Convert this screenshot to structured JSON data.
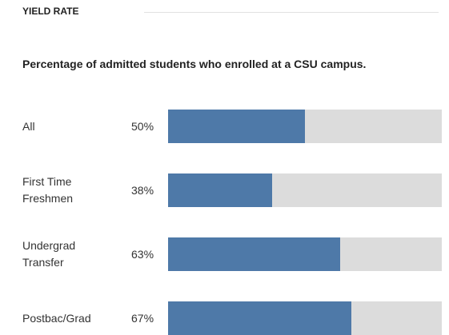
{
  "chart_data": {
    "type": "bar",
    "orientation": "horizontal",
    "title": "YIELD RATE",
    "subtitle": "Percentage of admitted students who enrolled at a CSU campus.",
    "categories": [
      "All",
      "First Time Freshmen",
      "Undergrad Transfer",
      "Postbac/Grad"
    ],
    "values": [
      50,
      38,
      63,
      67
    ],
    "value_labels": [
      "50%",
      "38%",
      "63%",
      "67%"
    ],
    "color": "#4e79a8",
    "track_color": "#dcdcdc",
    "xlim": [
      0,
      100
    ]
  }
}
